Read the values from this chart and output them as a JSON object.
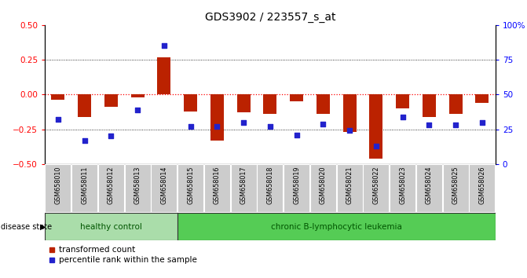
{
  "title": "GDS3902 / 223557_s_at",
  "samples": [
    "GSM658010",
    "GSM658011",
    "GSM658012",
    "GSM658013",
    "GSM658014",
    "GSM658015",
    "GSM658016",
    "GSM658017",
    "GSM658018",
    "GSM658019",
    "GSM658020",
    "GSM658021",
    "GSM658022",
    "GSM658023",
    "GSM658024",
    "GSM658025",
    "GSM658026"
  ],
  "red_bars": [
    -0.04,
    -0.16,
    -0.09,
    -0.02,
    0.27,
    -0.12,
    -0.33,
    -0.13,
    -0.14,
    -0.05,
    -0.14,
    -0.27,
    -0.46,
    -0.1,
    -0.16,
    -0.14,
    -0.06
  ],
  "blue_dots_pct": [
    32,
    17,
    20,
    39,
    85,
    27,
    27,
    30,
    27,
    21,
    29,
    24,
    13,
    34,
    28,
    28,
    30
  ],
  "healthy_control_count": 5,
  "group1_label": "healthy control",
  "group2_label": "chronic B-lymphocytic leukemia",
  "disease_state_label": "disease state",
  "legend1": "transformed count",
  "legend2": "percentile rank within the sample",
  "bar_color": "#bb2200",
  "dot_color": "#2222cc",
  "ylim_left": [
    -0.5,
    0.5
  ],
  "ylim_right": [
    0,
    100
  ],
  "yticks_left": [
    -0.5,
    -0.25,
    0.0,
    0.25,
    0.5
  ],
  "yticks_right": [
    0,
    25,
    50,
    75,
    100
  ],
  "bg_plot": "#ffffff",
  "bg_xticklabels": "#cccccc",
  "bg_healthy": "#aaddaa",
  "bg_leukemia": "#55cc55",
  "group_label_color": "#005500",
  "title_fontsize": 10
}
